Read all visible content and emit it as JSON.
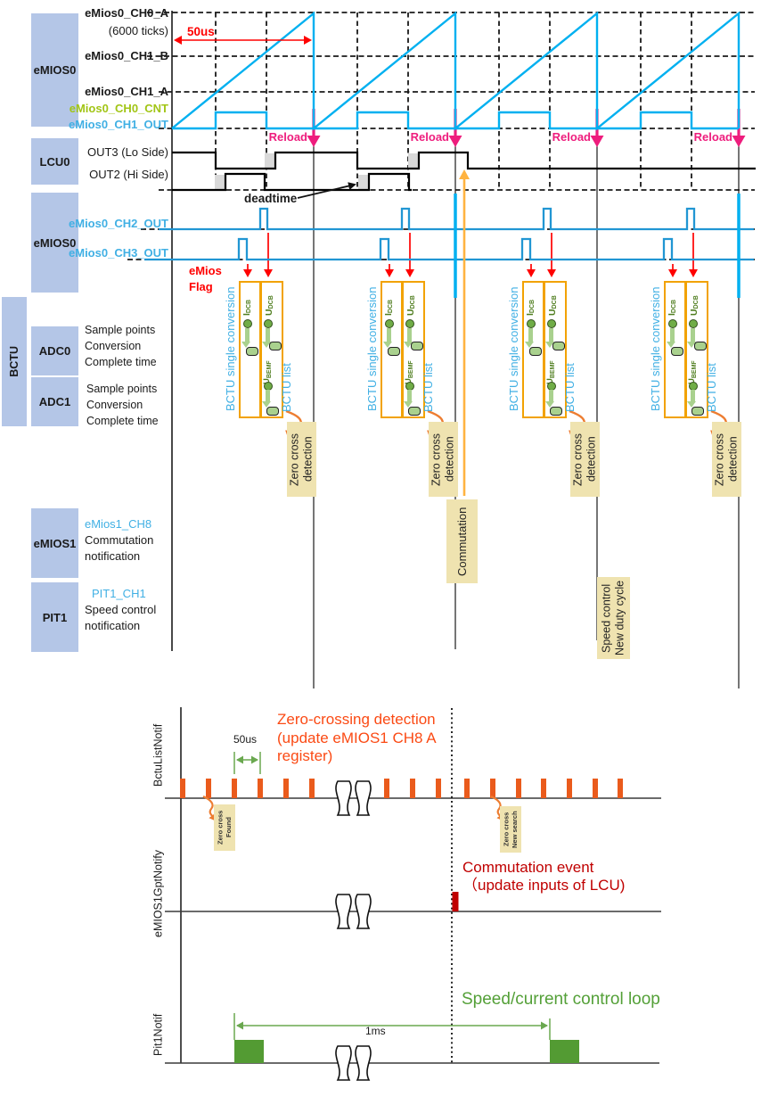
{
  "colors": {
    "block_fill": "#b4c6e7",
    "cyan": "#00b0f0",
    "blue": "#2196d3",
    "label_blue": "#41b0e4",
    "label_green": "#a2c516",
    "red": "#ff0000",
    "pink": "#ee1d7d",
    "orange_box": "#f2a202",
    "green_dark": "#507e20",
    "green_dot": "#70ad47",
    "green_light": "#a9d18e",
    "tan": "#efe3b0",
    "orange": "#ed7d31",
    "dark_red": "#c00000",
    "bottom_green": "#539b33",
    "measure_green": "#6aa84f",
    "tick_orange": "#ea5b1c",
    "zc_orange": "#fb4a14",
    "comm_arrow": "#ffb340",
    "speed_green": "#54a038"
  },
  "top": {
    "left_blocks": {
      "emios0_top": "eMIOS0",
      "lcu0": "LCU0",
      "emios0_mid": "eMIOS0",
      "bctu": "BCTU",
      "adc0": "ADC0",
      "adc1": "ADC1",
      "emios1": "eMIOS1",
      "pit1": "PIT1"
    },
    "row_labels": {
      "ch0_a": "eMios0_CH0_A",
      "ticks": "(6000 ticks)",
      "ch1_b": "eMios0_CH1_B",
      "ch1_a": "eMios0_CH1_A",
      "ch0_cnt": "eMios0_CH0_CNT",
      "ch1_out": "eMios0_CH1_OUT",
      "out3": "OUT3 (Lo Side)",
      "out2": "OUT2 (Hi Side)",
      "ch2_out": "eMios0_CH2_OUT",
      "ch3_out": "eMios0_CH3_OUT"
    },
    "adc0_desc": [
      "Sample points",
      "Conversion",
      "Complete time"
    ],
    "adc1_desc": [
      "Sample points",
      "Conversion",
      "Complete time"
    ],
    "annotations": {
      "t50us": "50us",
      "reload": "Reload",
      "deadtime": "deadtime",
      "emios_flag": [
        "eMios",
        "Flag"
      ]
    },
    "conversion": {
      "single": "BCTU single conversion",
      "list": "BCTU list",
      "i_label": "I",
      "u_label": "U",
      "dcb_sub": "DCB",
      "bemf_sub": "BEMF"
    },
    "event_boxes": {
      "zero_cross": [
        "Zero cross",
        "detection"
      ],
      "commutation": "Commutation",
      "speed": [
        "Speed control",
        "New duty cycle"
      ]
    },
    "emios1_label": "eMios1_CH8",
    "emios1_desc": [
      "Commutation",
      "notification"
    ],
    "pit1_label": "PIT1_CH1",
    "pit1_desc": [
      "Speed control",
      "notification"
    ]
  },
  "bottom": {
    "rows": [
      "BctuListNotif",
      "eMIOS1GptNotify",
      "Pit1Notif"
    ],
    "t50us": "50us",
    "t1ms": "1ms",
    "zc_note": [
      "Zero-crossing detection",
      "(update eMIOS1 CH8 A",
      "register)"
    ],
    "comm_note": [
      "Commutation event",
      "（update inputs of LCU)"
    ],
    "speed_note": "Speed/current control loop",
    "zc_found": [
      "Zero cross",
      "Found"
    ],
    "zc_new": [
      "Zero cross",
      "New search"
    ]
  }
}
